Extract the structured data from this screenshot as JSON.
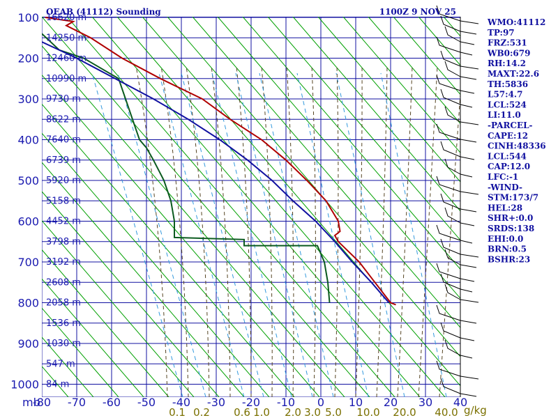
{
  "chart_data": {
    "type": "line",
    "title": "OEAB (41112) Sounding",
    "valid_time": "1100Z  9 NOV 25",
    "pressure_ticks": [
      "100",
      "200",
      "300",
      "400",
      "500",
      "600",
      "700",
      "800",
      "900",
      "1000"
    ],
    "pressure_label": "mb",
    "temperature_ticks": [
      "-80",
      "-70",
      "-60",
      "-50",
      "-40",
      "-30",
      "-20",
      "-10",
      "0",
      "10",
      "20",
      "30",
      "40"
    ],
    "temperature_unit": "C",
    "mixing_ratio_labels": [
      "0.1",
      "0.2",
      "0.6",
      "1.0",
      "2.0",
      "3.0",
      "5.0",
      "10.0",
      "20.0",
      "40.0"
    ],
    "mixing_ratio_unit": "g/kg",
    "height_labels": [
      {
        "p": 100,
        "text": "16620 m"
      },
      {
        "p": 150,
        "text": "14250 m"
      },
      {
        "p": 200,
        "text": "12460 m"
      },
      {
        "p": 250,
        "text": "10990 m"
      },
      {
        "p": 300,
        "text": "9730 m"
      },
      {
        "p": 350,
        "text": "8622 m"
      },
      {
        "p": 400,
        "text": "7640 m"
      },
      {
        "p": 450,
        "text": "6739 m"
      },
      {
        "p": 500,
        "text": "5920 m"
      },
      {
        "p": 550,
        "text": "5158 m"
      },
      {
        "p": 600,
        "text": "4452 m"
      },
      {
        "p": 650,
        "text": "3798 m"
      },
      {
        "p": 700,
        "text": "3192 m"
      },
      {
        "p": 750,
        "text": "2608 m"
      },
      {
        "p": 800,
        "text": "2058 m"
      },
      {
        "p": 850,
        "text": "1536 m"
      },
      {
        "p": 900,
        "text": "1030 m"
      },
      {
        "p": 950,
        "text": "547 m"
      },
      {
        "p": 1000,
        "text": "84 m"
      }
    ],
    "series": [
      {
        "name": "temperature",
        "color": "#b00000",
        "points": [
          {
            "p": 100,
            "t": -79
          },
          {
            "p": 110,
            "t": -71
          },
          {
            "p": 120,
            "t": -73
          },
          {
            "p": 150,
            "t": -66
          },
          {
            "p": 200,
            "t": -57
          },
          {
            "p": 250,
            "t": -46
          },
          {
            "p": 300,
            "t": -34
          },
          {
            "p": 350,
            "t": -26
          },
          {
            "p": 400,
            "t": -17
          },
          {
            "p": 450,
            "t": -10
          },
          {
            "p": 500,
            "t": -4
          },
          {
            "p": 550,
            "t": 1.5
          },
          {
            "p": 600,
            "t": 5
          },
          {
            "p": 625,
            "t": 5.5
          },
          {
            "p": 635,
            "t": 4
          },
          {
            "p": 650,
            "t": 5
          },
          {
            "p": 700,
            "t": 11
          },
          {
            "p": 750,
            "t": 15.5
          },
          {
            "p": 800,
            "t": 20
          },
          {
            "p": 805,
            "t": 21.5
          }
        ]
      },
      {
        "name": "dewpoint",
        "color": "#0a5a1e",
        "points": [
          {
            "p": 140,
            "t": -80
          },
          {
            "p": 180,
            "t": -75
          },
          {
            "p": 200,
            "t": -68
          },
          {
            "p": 250,
            "t": -58
          },
          {
            "p": 300,
            "t": -56
          },
          {
            "p": 350,
            "t": -54
          },
          {
            "p": 400,
            "t": -52
          },
          {
            "p": 420,
            "t": -50
          },
          {
            "p": 450,
            "t": -48
          },
          {
            "p": 500,
            "t": -45
          },
          {
            "p": 550,
            "t": -43
          },
          {
            "p": 600,
            "t": -42
          },
          {
            "p": 640,
            "t": -42
          },
          {
            "p": 645,
            "t": -22
          },
          {
            "p": 660,
            "t": -22
          },
          {
            "p": 660,
            "t": -1
          },
          {
            "p": 700,
            "t": 1
          },
          {
            "p": 750,
            "t": 2
          },
          {
            "p": 800,
            "t": 2.5
          }
        ]
      },
      {
        "name": "parcel",
        "color": "#1010a0",
        "points": [
          {
            "p": 160,
            "t": -80
          },
          {
            "p": 200,
            "t": -70
          },
          {
            "p": 250,
            "t": -59
          },
          {
            "p": 300,
            "t": -48
          },
          {
            "p": 350,
            "t": -38
          },
          {
            "p": 400,
            "t": -29
          },
          {
            "p": 450,
            "t": -21
          },
          {
            "p": 500,
            "t": -14
          },
          {
            "p": 550,
            "t": -8
          },
          {
            "p": 600,
            "t": -1.5
          },
          {
            "p": 650,
            "t": 4
          },
          {
            "p": 700,
            "t": 9
          },
          {
            "p": 750,
            "t": 14.5
          },
          {
            "p": 800,
            "t": 19.5
          }
        ]
      }
    ]
  },
  "indices": [
    "WMO:41112",
    "TP:97",
    "FRZ:531",
    "WB0:679",
    "RH:14.2",
    "MAXT:22.6",
    "TH:5836",
    "L57:4.7",
    "LCL:524",
    "LI:11.0",
    "-PARCEL-",
    "CAPE:12",
    "CINH:48336",
    "LCL:544",
    "CAP:12.0",
    "LFC:-1",
    "-WIND-",
    "STM:173/7",
    "HEL:28",
    "SHR+:0.0",
    "SRDS:138",
    "EHI:0.0",
    "BRN:0.5",
    "BSHR:23"
  ],
  "colors": {
    "grid": "#1010a0",
    "dry_adiabat": "#00a000",
    "moist_adiabat": "#554422",
    "mixing_ratio": "#3399dd",
    "temperature": "#b00000",
    "dewpoint": "#0a5a1e",
    "parcel": "#1010a0"
  }
}
